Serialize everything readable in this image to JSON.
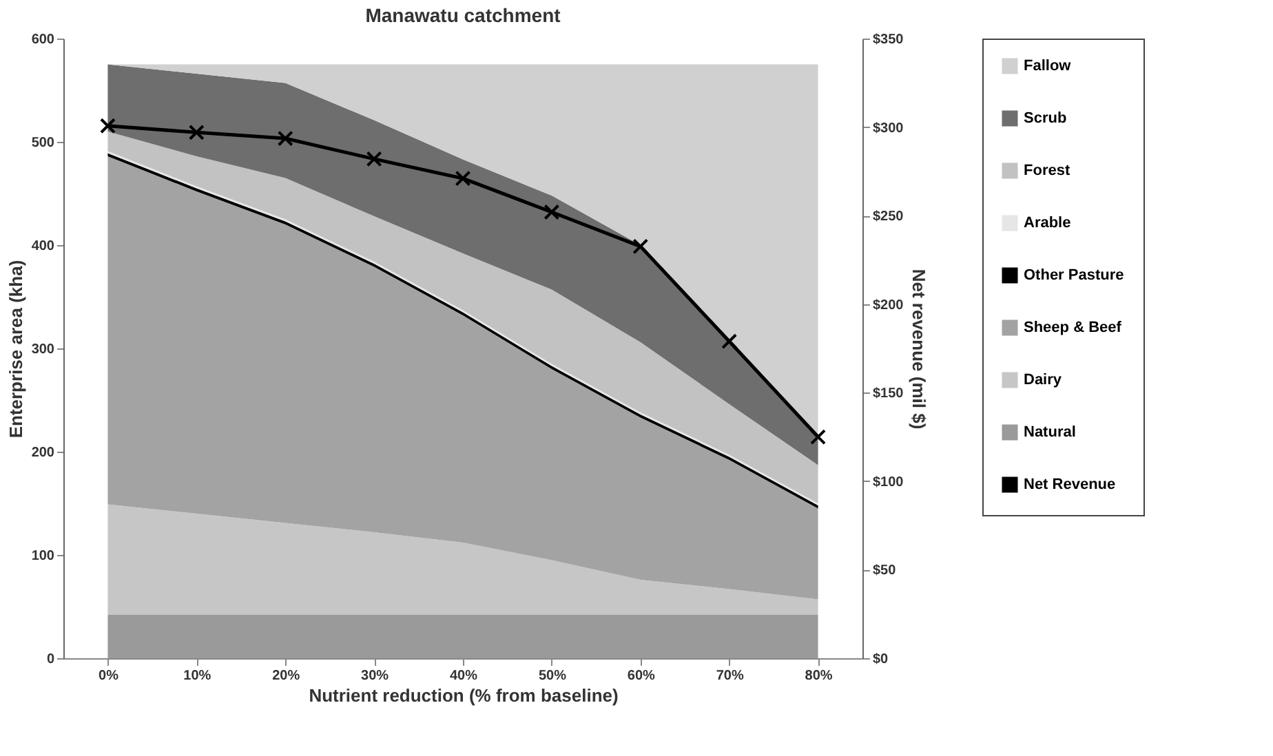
{
  "chart_data": {
    "type": "area",
    "stacked": true,
    "title": "Manawatu catchment",
    "xlabel": "Nutrient reduction (% from baseline)",
    "ylabel": "Enterprise area (kha)",
    "y2label": "Net revenue (mil $)",
    "categories": [
      "0%",
      "10%",
      "20%",
      "30%",
      "40%",
      "50%",
      "60%",
      "70%",
      "80%"
    ],
    "series": [
      {
        "name": "Natural",
        "color": "#9a9a9a",
        "values": [
          42,
          42,
          42,
          42,
          42,
          42,
          42,
          42,
          42
        ]
      },
      {
        "name": "Dairy",
        "color": "#c6c6c6",
        "values": [
          107,
          98,
          89,
          80,
          70,
          53,
          34,
          25,
          15
        ]
      },
      {
        "name": "Sheep & Beef",
        "color": "#a3a3a3",
        "values": [
          337,
          312,
          289,
          257,
          220,
          185,
          157,
          125,
          88
        ]
      },
      {
        "name": "Other Pasture",
        "color": "#000000",
        "values": [
          3,
          3,
          3,
          3,
          3,
          3,
          3,
          3,
          3
        ]
      },
      {
        "name": "Arable",
        "color": "#e6e6e6",
        "values": [
          2,
          2,
          2,
          2,
          2,
          2,
          2,
          2,
          2
        ]
      },
      {
        "name": "Forest",
        "color": "#c2c2c2",
        "values": [
          19,
          29,
          40,
          44,
          55,
          72,
          68,
          49,
          37
        ]
      },
      {
        "name": "Scrub",
        "color": "#6e6e6e",
        "values": [
          65,
          80,
          92,
          93,
          91,
          91,
          94,
          62,
          25
        ]
      },
      {
        "name": "Fallow",
        "color": "#d0d0d0",
        "values": [
          0,
          9,
          18,
          54,
          92,
          127,
          175,
          267,
          363
        ]
      },
      {
        "name": "Net Revenue",
        "type": "line",
        "axis": "y2",
        "color": "#000000",
        "marker": "cross",
        "values": [
          300.7,
          297,
          293.6,
          282,
          271,
          252,
          232.6,
          179,
          125
        ]
      }
    ],
    "ylim": [
      0,
      600
    ],
    "yticks": [
      0,
      100,
      200,
      300,
      400,
      500,
      600
    ],
    "y2lim": [
      0,
      350
    ],
    "y2ticks": [
      {
        "value": 0,
        "label": "$0"
      },
      {
        "value": 50,
        "label": "$50"
      },
      {
        "value": 100,
        "label": "$100"
      },
      {
        "value": 150,
        "label": "$150"
      },
      {
        "value": 200,
        "label": "$200"
      },
      {
        "value": 250,
        "label": "$250"
      },
      {
        "value": 300,
        "label": "$300"
      },
      {
        "value": 350,
        "label": "$350"
      }
    ],
    "grid": false,
    "legend": "right"
  }
}
